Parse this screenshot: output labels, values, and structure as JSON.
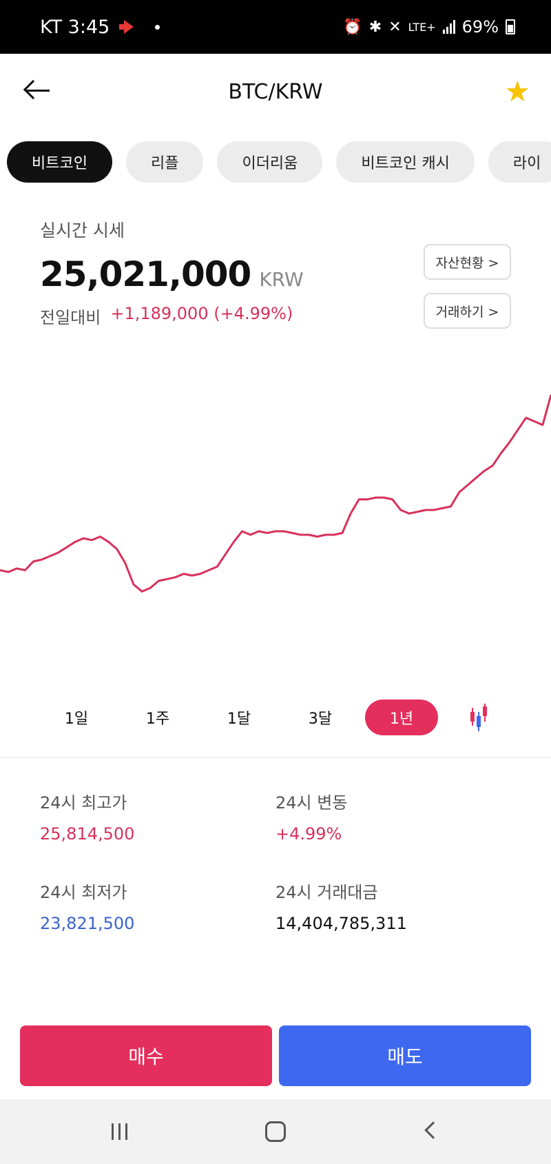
{
  "statusbar": {
    "carrier_time": "KT 3:45",
    "network": "LTE+",
    "battery": "69%"
  },
  "header": {
    "title": "BTC/KRW"
  },
  "coin_tabs": [
    "비트코인",
    "리플",
    "이더리움",
    "비트코인 캐시",
    "라이"
  ],
  "price_info": {
    "label": "실시간 시세",
    "price": "25,021,000",
    "currency": "KRW",
    "change_label": "전일대비",
    "change_value": "+1,189,000 (+4.99%)",
    "assets_button": "자산현황 >",
    "trade_button": "거래하기 >"
  },
  "chart_data": {
    "type": "line",
    "title": "",
    "xlabel": "",
    "ylabel": "",
    "color": "#d8315b",
    "values": [
      36,
      35,
      37,
      36,
      41,
      42,
      44,
      46,
      49,
      52,
      54,
      53,
      55,
      52,
      48,
      40,
      28,
      24,
      26,
      30,
      31,
      32,
      34,
      33,
      34,
      36,
      38,
      45,
      52,
      58,
      56,
      58,
      57,
      58,
      58,
      57,
      56,
      56,
      55,
      56,
      56,
      57,
      68,
      76,
      76,
      77,
      77,
      76,
      70,
      68,
      69,
      70,
      70,
      71,
      72,
      80,
      84,
      88,
      92,
      95,
      102,
      108,
      115,
      122,
      120,
      118,
      135
    ],
    "ylim": [
      0,
      140
    ]
  },
  "periods": [
    "1일",
    "1주",
    "1달",
    "3달",
    "1년"
  ],
  "active_period": "1년",
  "stats": {
    "high_label": "24시 최고가",
    "high_value": "25,814,500",
    "change_label": "24시 변동",
    "change_value": "+4.99%",
    "low_label": "24시 최저가",
    "low_value": "23,821,500",
    "volume_label": "24시 거래대금",
    "volume_value": "14,404,785,311"
  },
  "actions": {
    "buy": "매수",
    "sell": "매도"
  },
  "colors": {
    "accent_red": "#e42f5d",
    "accent_blue": "#3e68ef",
    "star": "#f7c300"
  }
}
